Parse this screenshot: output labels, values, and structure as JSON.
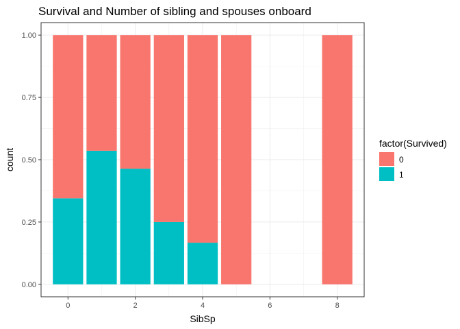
{
  "chart_data": {
    "type": "bar",
    "stacked": true,
    "position": "fill",
    "title": "Survival and Number of sibling and spouses onboard",
    "xlabel": "SibSp",
    "ylabel": "count",
    "x": [
      0,
      1,
      2,
      3,
      4,
      5,
      8
    ],
    "xlim": [
      -0.8,
      8.8
    ],
    "ylim": [
      -0.05,
      1.05
    ],
    "xticks": [
      0,
      2,
      4,
      6,
      8
    ],
    "yticks": [
      "0.00",
      "0.25",
      "0.50",
      "0.75",
      "1.00"
    ],
    "yticks_values": [
      0,
      0.25,
      0.5,
      0.75,
      1.0
    ],
    "grid": true,
    "legend": {
      "title": "factor(Survived)",
      "position": "right",
      "entries": [
        {
          "label": "0",
          "color": "#F8766D"
        },
        {
          "label": "1",
          "color": "#00BFC4"
        }
      ]
    },
    "series": [
      {
        "name": "0",
        "color": "#F8766D",
        "values": [
          0.655,
          0.464,
          0.536,
          0.75,
          0.833,
          1.0,
          1.0
        ]
      },
      {
        "name": "1",
        "color": "#00BFC4",
        "values": [
          0.345,
          0.536,
          0.464,
          0.25,
          0.167,
          0.0,
          0.0
        ]
      }
    ]
  }
}
